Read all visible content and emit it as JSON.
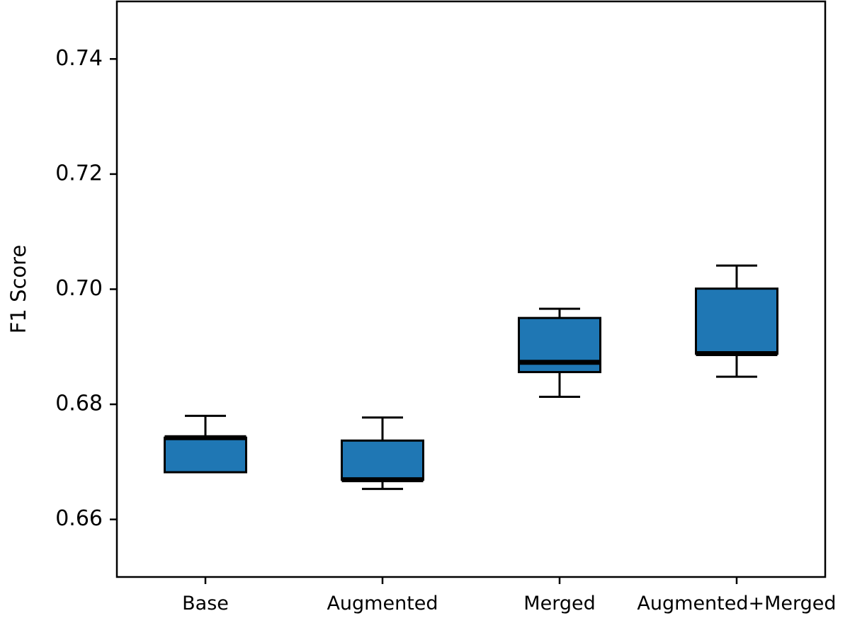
{
  "chart_data": {
    "type": "box",
    "title": "",
    "xlabel": "",
    "ylabel": "F1 Score",
    "ylim": [
      0.65,
      0.75
    ],
    "yticks": [
      0.66,
      0.68,
      0.7,
      0.72,
      0.74
    ],
    "ytick_labels": [
      "0.66",
      "0.68",
      "0.70",
      "0.72",
      "0.74"
    ],
    "grid": false,
    "categories": [
      "Base",
      "Augmented",
      "Merged",
      "Augmented+Merged"
    ],
    "boxes": [
      {
        "category": "Base",
        "whisker_low": 0.6682,
        "q1": 0.6682,
        "median": 0.6742,
        "q3": 0.6742,
        "whisker_high": 0.678
      },
      {
        "category": "Augmented",
        "whisker_low": 0.6653,
        "q1": 0.6669,
        "median": 0.6669,
        "q3": 0.6737,
        "whisker_high": 0.6777
      },
      {
        "category": "Merged",
        "whisker_low": 0.6813,
        "q1": 0.6856,
        "median": 0.6873,
        "q3": 0.695,
        "whisker_high": 0.6966
      },
      {
        "category": "Augmented+Merged",
        "whisker_low": 0.6848,
        "q1": 0.6888,
        "median": 0.6888,
        "q3": 0.7001,
        "whisker_high": 0.7041
      }
    ],
    "box_color": "#1f77b4",
    "median_color": "#000000",
    "edge_color": "#000000"
  }
}
